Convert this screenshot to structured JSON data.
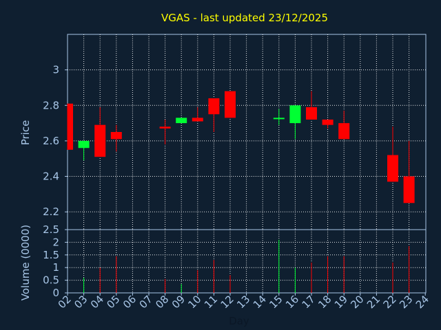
{
  "chart_data": [
    {
      "type": "candlestick",
      "title": "VGAS - last updated 23/12/2025",
      "ylabel": "Price",
      "ylim": [
        2.1,
        3.2
      ],
      "yticks": [
        2.2,
        2.4,
        2.6,
        2.8,
        3
      ],
      "ytick_labels": [
        "2.2",
        "2.4",
        "2.6",
        "2.8",
        "3"
      ],
      "x_categories": [
        "02",
        "03",
        "04",
        "05",
        "06",
        "07",
        "08",
        "09",
        "10",
        "11",
        "12",
        "13",
        "14",
        "15",
        "16",
        "17",
        "18",
        "19",
        "20",
        "21",
        "22",
        "23",
        "24"
      ],
      "up_color": "#00ff33",
      "down_color": "#ff0000",
      "candles": [
        {
          "day": "02",
          "open": 2.81,
          "close": 2.55,
          "high": 2.81,
          "low": 2.55
        },
        {
          "day": "03",
          "open": 2.56,
          "close": 2.6,
          "high": 2.6,
          "low": 2.49
        },
        {
          "day": "04",
          "open": 2.69,
          "close": 2.51,
          "high": 2.79,
          "low": 2.51
        },
        {
          "day": "05",
          "open": 2.65,
          "close": 2.61,
          "high": 2.69,
          "low": 2.54
        },
        {
          "day": "08",
          "open": 2.68,
          "close": 2.67,
          "high": 2.72,
          "low": 2.58
        },
        {
          "day": "09",
          "open": 2.7,
          "close": 2.73,
          "high": 2.73,
          "low": 2.7
        },
        {
          "day": "10",
          "open": 2.73,
          "close": 2.71,
          "high": 2.79,
          "low": 2.71
        },
        {
          "day": "11",
          "open": 2.84,
          "close": 2.75,
          "high": 2.84,
          "low": 2.65
        },
        {
          "day": "12",
          "open": 2.88,
          "close": 2.73,
          "high": 2.88,
          "low": 2.73
        },
        {
          "day": "15",
          "open": 2.73,
          "close": 2.73,
          "high": 2.78,
          "low": 2.69
        },
        {
          "day": "16",
          "open": 2.7,
          "close": 2.8,
          "high": 2.8,
          "low": 2.61
        },
        {
          "day": "17",
          "open": 2.79,
          "close": 2.72,
          "high": 2.88,
          "low": 2.72
        },
        {
          "day": "18",
          "open": 2.72,
          "close": 2.69,
          "high": 2.72,
          "low": 2.67
        },
        {
          "day": "19",
          "open": 2.7,
          "close": 2.61,
          "high": 2.77,
          "low": 2.61
        },
        {
          "day": "22",
          "open": 2.52,
          "close": 2.37,
          "high": 2.68,
          "low": 2.37
        },
        {
          "day": "23",
          "open": 2.4,
          "close": 2.25,
          "high": 2.6,
          "low": 2.25
        }
      ]
    },
    {
      "type": "bar",
      "ylabel": "Volume (0000)",
      "xlabel": "Day",
      "ylim": [
        0,
        2.5
      ],
      "yticks": [
        0,
        0.5,
        1,
        1.5,
        2,
        2.5
      ],
      "ytick_labels": [
        "0",
        "0.5",
        "1",
        "1.5",
        "2",
        "2.5"
      ],
      "categories": [
        "02",
        "03",
        "04",
        "05",
        "06",
        "07",
        "08",
        "09",
        "10",
        "11",
        "12",
        "13",
        "14",
        "15",
        "16",
        "17",
        "18",
        "19",
        "20",
        "21",
        "22",
        "23",
        "24"
      ],
      "bars": [
        {
          "day": "03",
          "value": 0.6,
          "color": "#00ff33"
        },
        {
          "day": "04",
          "value": 1.0,
          "color": "#ff0000"
        },
        {
          "day": "05",
          "value": 1.45,
          "color": "#ff0000"
        },
        {
          "day": "08",
          "value": 0.55,
          "color": "#ff0000"
        },
        {
          "day": "09",
          "value": 0.35,
          "color": "#00ff33"
        },
        {
          "day": "10",
          "value": 0.9,
          "color": "#ff0000"
        },
        {
          "day": "11",
          "value": 1.3,
          "color": "#ff0000"
        },
        {
          "day": "12",
          "value": 0.7,
          "color": "#ff0000"
        },
        {
          "day": "15",
          "value": 2.1,
          "color": "#00ff33"
        },
        {
          "day": "16",
          "value": 1.0,
          "color": "#00ff33"
        },
        {
          "day": "17",
          "value": 1.2,
          "color": "#ff0000"
        },
        {
          "day": "18",
          "value": 1.45,
          "color": "#ff0000"
        },
        {
          "day": "19",
          "value": 1.45,
          "color": "#ff0000"
        },
        {
          "day": "22",
          "value": 1.2,
          "color": "#ff0000"
        },
        {
          "day": "23",
          "value": 1.85,
          "color": "#ff0000"
        }
      ]
    }
  ]
}
